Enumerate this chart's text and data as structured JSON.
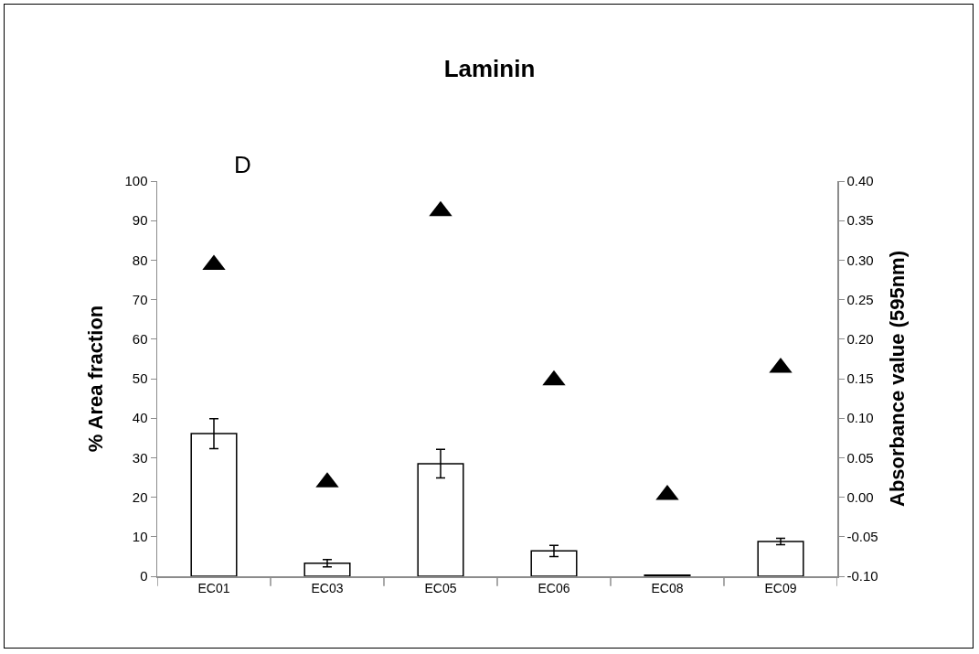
{
  "chart_data": {
    "type": "bar",
    "title": "Laminin",
    "ylabel": "% Area fraction",
    "y2label": "Absorbance value (595nm)",
    "annotations": [
      "D"
    ],
    "categories": [
      "EC01",
      "EC03",
      "EC05",
      "EC06",
      "EC08",
      "EC09"
    ],
    "series": [
      {
        "color": "#ffffff",
        "values": [
          36.1,
          3.3,
          28.5,
          6.4,
          0.3,
          8.8
        ],
        "errors": [
          3.8,
          0.9,
          3.6,
          1.4,
          null,
          0.8
        ]
      },
      {
        "type": "scatter",
        "axis": "y2",
        "color": "#000000",
        "values": [
          0.294,
          0.019,
          0.362,
          0.148,
          0.003,
          0.164
        ]
      }
    ],
    "marker": "triangle",
    "ylim": [
      0,
      100
    ],
    "yticks": [
      0,
      10,
      20,
      30,
      40,
      50,
      60,
      70,
      80,
      90,
      100
    ],
    "y2lim": [
      -0.1,
      0.4
    ],
    "y2ticks": [
      {
        "value": -0.1,
        "label": "-0.10"
      },
      {
        "value": -0.05,
        "label": "-0.05"
      },
      {
        "value": 0,
        "label": "0.00"
      },
      {
        "value": 0.05,
        "label": "0.05"
      },
      {
        "value": 0.1,
        "label": "0.10"
      },
      {
        "value": 0.15,
        "label": "0.15"
      },
      {
        "value": 0.2,
        "label": "0.20"
      },
      {
        "value": 0.25,
        "label": "0.25"
      },
      {
        "value": 0.3,
        "label": "0.30"
      },
      {
        "value": 0.35,
        "label": "0.35"
      },
      {
        "value": 0.4,
        "label": "0.40"
      }
    ],
    "grid": false,
    "legend": false
  }
}
